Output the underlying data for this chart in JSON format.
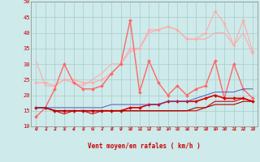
{
  "xlabel": "Vent moyen/en rafales ( km/h )",
  "x": [
    0,
    1,
    2,
    3,
    4,
    5,
    6,
    7,
    8,
    9,
    10,
    11,
    12,
    13,
    14,
    15,
    16,
    17,
    18,
    19,
    20,
    21,
    22,
    23
  ],
  "ylim": [
    10,
    50
  ],
  "xlim": [
    -0.5,
    23.5
  ],
  "yticks": [
    10,
    15,
    20,
    25,
    30,
    35,
    40,
    45,
    50
  ],
  "background_color": "#ceeaea",
  "grid_color": "#aacccc",
  "line_light_pink": {
    "y": [
      24,
      24,
      23,
      25,
      25,
      24,
      24,
      25,
      27,
      30,
      35,
      35,
      41,
      41,
      42,
      41,
      38,
      38,
      40,
      47,
      43,
      36,
      44,
      34
    ],
    "color": "#ffaaaa",
    "lw": 0.8,
    "marker": "D",
    "ms": 1.8
  },
  "line_light_pink2": {
    "y": [
      31,
      23,
      23,
      25,
      24,
      23,
      25,
      27,
      30,
      30,
      34,
      35,
      40,
      41,
      42,
      41,
      38,
      38,
      38,
      40,
      40,
      36,
      40,
      33
    ],
    "color": "#ffaaaa",
    "lw": 0.8,
    "marker": null
  },
  "line_medium_red": {
    "y": [
      13,
      16,
      22,
      30,
      24,
      22,
      22,
      23,
      27,
      30,
      44,
      21,
      31,
      24,
      20,
      23,
      20,
      22,
      23,
      31,
      19,
      30,
      22,
      19
    ],
    "color": "#ff6666",
    "lw": 1.0,
    "marker": "D",
    "ms": 2.0
  },
  "line_dark_red1": {
    "y": [
      16,
      16,
      15,
      15,
      15,
      15,
      15,
      15,
      15,
      15,
      16,
      16,
      17,
      17,
      18,
      18,
      18,
      18,
      19,
      20,
      19,
      19,
      19,
      18
    ],
    "color": "#dd0000",
    "lw": 1.2,
    "marker": "D",
    "ms": 2.0
  },
  "line_dark_red2": {
    "y": [
      16,
      16,
      15,
      14,
      15,
      15,
      14,
      15,
      15,
      15,
      15,
      15,
      15,
      15,
      15,
      15,
      15,
      15,
      16,
      18,
      18,
      18,
      19,
      18
    ],
    "color": "#cc0000",
    "lw": 0.8,
    "marker": null
  },
  "line_dark_red3": {
    "y": [
      16,
      16,
      15,
      15,
      15,
      15,
      15,
      15,
      15,
      15,
      15,
      15,
      15,
      15,
      15,
      15,
      15,
      16,
      16,
      17,
      17,
      17,
      18,
      18
    ],
    "color": "#aa0000",
    "lw": 0.8,
    "marker": null
  },
  "line_blue": {
    "y": [
      16,
      16,
      16,
      16,
      16,
      16,
      16,
      16,
      17,
      17,
      17,
      17,
      17,
      17,
      18,
      18,
      18,
      19,
      20,
      21,
      21,
      21,
      22,
      22
    ],
    "color": "#5555bb",
    "lw": 0.7,
    "marker": null
  },
  "arrow_color": "#cc0000"
}
